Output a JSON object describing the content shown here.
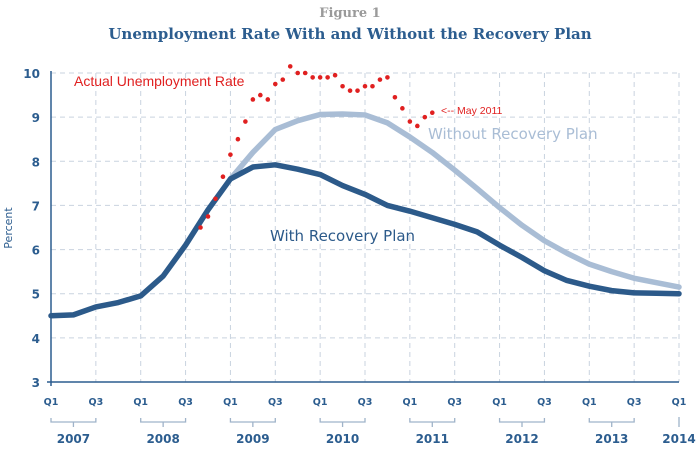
{
  "header": {
    "figure_label": "Figure 1",
    "title": "Unemployment Rate With and Without the Recovery Plan"
  },
  "colors": {
    "with_plan": "#2c5a8a",
    "without_plan": "#a9bdd5",
    "actual": "#e02020",
    "axis": "#2c5d8f",
    "grid": "#c9d3df",
    "bracket": "#9fb3c9"
  },
  "chart_data": {
    "type": "line",
    "title": "Unemployment Rate With and Without the Recovery Plan",
    "xlabel": "",
    "ylabel": "Percent",
    "ylim": [
      3,
      10
    ],
    "yticks": [
      3,
      4,
      5,
      6,
      7,
      8,
      9,
      10
    ],
    "xlim": [
      "2007 Q1",
      "2014 Q1"
    ],
    "grid": true,
    "quarter_ticks": [
      "Q1",
      "Q3",
      "Q1",
      "Q3",
      "Q1",
      "Q3",
      "Q1",
      "Q3",
      "Q1",
      "Q3",
      "Q1",
      "Q3",
      "Q1",
      "Q3",
      "Q1"
    ],
    "year_labels": [
      "2007",
      "2008",
      "2009",
      "2010",
      "2011",
      "2012",
      "2013",
      "2014"
    ],
    "x_quarters": [
      "2007Q1",
      "2007Q2",
      "2007Q3",
      "2007Q4",
      "2008Q1",
      "2008Q2",
      "2008Q3",
      "2008Q4",
      "2009Q1",
      "2009Q2",
      "2009Q3",
      "2009Q4",
      "2010Q1",
      "2010Q2",
      "2010Q3",
      "2010Q4",
      "2011Q1",
      "2011Q2",
      "2011Q3",
      "2011Q4",
      "2012Q1",
      "2012Q2",
      "2012Q3",
      "2012Q4",
      "2013Q1",
      "2013Q2",
      "2013Q3",
      "2013Q4",
      "2014Q1"
    ],
    "series": [
      {
        "name": "With Recovery Plan",
        "values": [
          4.5,
          4.52,
          4.7,
          4.8,
          4.95,
          5.4,
          6.1,
          6.9,
          7.6,
          7.87,
          7.92,
          7.82,
          7.7,
          7.45,
          7.25,
          7.0,
          6.87,
          6.72,
          6.57,
          6.4,
          6.1,
          5.82,
          5.52,
          5.3,
          5.17,
          5.07,
          5.02,
          5.01,
          5.0
        ]
      },
      {
        "name": "Without Recovery Plan",
        "start_index": 8,
        "values": [
          7.6,
          8.2,
          8.72,
          8.92,
          9.06,
          9.07,
          9.05,
          8.87,
          8.55,
          8.2,
          7.8,
          7.38,
          6.95,
          6.55,
          6.2,
          5.92,
          5.67,
          5.5,
          5.35,
          5.25,
          5.15
        ]
      },
      {
        "name": "Actual Unemployment Rate",
        "style": "dots",
        "x_months_from_2007_01": [
          20,
          21,
          22,
          23,
          24,
          25,
          26,
          27,
          28,
          29,
          30,
          31,
          32,
          33,
          34,
          35,
          36,
          37,
          38,
          39,
          40,
          41,
          42,
          43,
          44,
          45,
          46,
          47,
          48,
          49,
          50,
          51
        ],
        "values": [
          6.5,
          6.75,
          7.15,
          7.65,
          8.15,
          8.5,
          8.9,
          9.4,
          9.5,
          9.4,
          9.75,
          9.85,
          10.15,
          10.0,
          10.0,
          9.9,
          9.9,
          9.9,
          9.95,
          9.7,
          9.6,
          9.6,
          9.7,
          9.7,
          9.85,
          9.9,
          9.45,
          9.2,
          8.9,
          8.8,
          9.0,
          9.1
        ]
      }
    ],
    "annotations": {
      "actual_label": "Actual Unemployment Rate",
      "without_label": "Without Recovery Plan",
      "with_label": "With Recovery Plan",
      "latest_point": "<-- May 2011"
    }
  }
}
